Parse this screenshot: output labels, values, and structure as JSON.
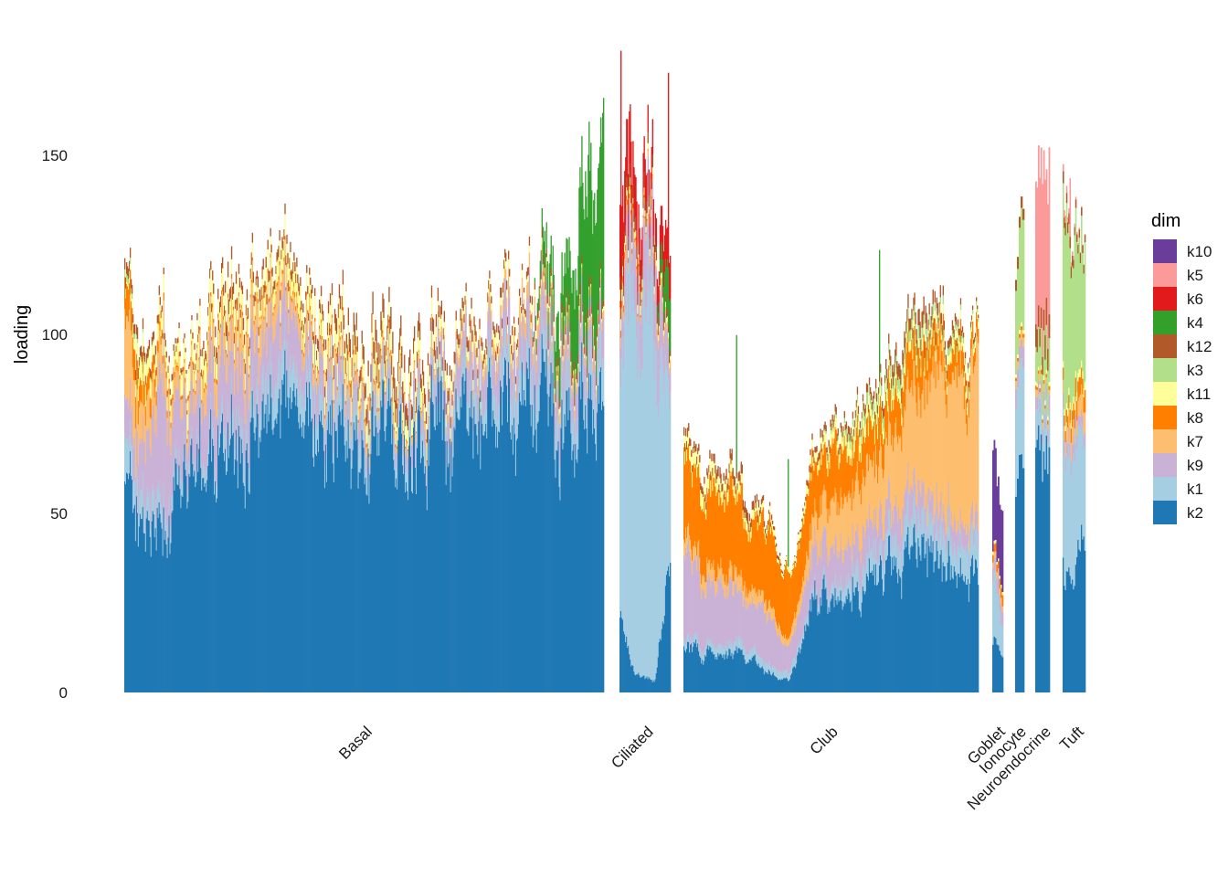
{
  "chart_data": {
    "type": "bar",
    "stacked": true,
    "ylabel": "loading",
    "ylim": [
      0,
      185
    ],
    "yticks": [
      0,
      50,
      100,
      150
    ],
    "grid": false,
    "legend": {
      "title": "dim",
      "placement": "right",
      "entries": [
        "k10",
        "k5",
        "k6",
        "k4",
        "k12",
        "k3",
        "k11",
        "k8",
        "k7",
        "k9",
        "k1",
        "k2"
      ]
    },
    "colors": {
      "k10": "#6a3d9a",
      "k5": "#fb9a99",
      "k6": "#e31a1c",
      "k4": "#33a02c",
      "k12": "#b15928",
      "k3": "#b2df8a",
      "k11": "#ffff99",
      "k8": "#ff7f00",
      "k7": "#fdbf6f",
      "k9": "#cab2d6",
      "k1": "#a6cee3",
      "k2": "#1f78b4"
    },
    "stack_order_bottom_to_top": [
      "k2",
      "k1",
      "k9",
      "k7",
      "k8",
      "k11",
      "k3",
      "k12",
      "k4",
      "k6",
      "k5",
      "k10"
    ],
    "groups": [
      {
        "label": "Basal",
        "bars": 530,
        "approx_profile": [
          {
            "at": 0.0,
            "k2": 58,
            "k1": 12,
            "k9": 10,
            "k7": 25,
            "k8": 8,
            "k11": 0,
            "k3": 2,
            "k12": 3,
            "k4": 0,
            "k6": 0
          },
          {
            "at": 0.03,
            "k2": 46,
            "k1": 8,
            "k9": 12,
            "k7": 10,
            "k8": 8,
            "k11": 5,
            "k3": 1,
            "k12": 3,
            "k4": 0,
            "k6": 0
          },
          {
            "at": 0.08,
            "k2": 48,
            "k1": 6,
            "k9": 30,
            "k7": 8,
            "k8": 2,
            "k11": 4,
            "k3": 0,
            "k12": 2,
            "k4": 0,
            "k6": 0
          },
          {
            "at": 0.13,
            "k2": 62,
            "k1": 3,
            "k9": 15,
            "k7": 4,
            "k8": 1,
            "k11": 8,
            "k3": 0,
            "k12": 1,
            "k4": 0,
            "k6": 0
          },
          {
            "at": 0.22,
            "k2": 70,
            "k1": 6,
            "k9": 20,
            "k7": 10,
            "k8": 1,
            "k11": 4,
            "k3": 0,
            "k12": 4,
            "k4": 0,
            "k6": 0
          },
          {
            "at": 0.38,
            "k2": 72,
            "k1": 10,
            "k9": 12,
            "k7": 5,
            "k8": 1,
            "k11": 6,
            "k3": 0,
            "k12": 2,
            "k4": 0,
            "k6": 0
          },
          {
            "at": 0.54,
            "k2": 70,
            "k1": 6,
            "k9": 4,
            "k7": 2,
            "k8": 1,
            "k11": 6,
            "k3": 0,
            "k12": 6,
            "k4": 0,
            "k6": 0
          },
          {
            "at": 0.68,
            "k2": 75,
            "k1": 6,
            "k9": 8,
            "k7": 2,
            "k8": 0,
            "k11": 3,
            "k3": 0,
            "k12": 3,
            "k4": 0,
            "k6": 0
          },
          {
            "at": 0.85,
            "k2": 82,
            "k1": 10,
            "k9": 12,
            "k7": 4,
            "k8": 0,
            "k11": 2,
            "k3": 0,
            "k12": 2,
            "k4": 0,
            "k6": 0
          },
          {
            "at": 0.96,
            "k2": 82,
            "k1": 7,
            "k9": 10,
            "k7": 2,
            "k8": 0,
            "k11": 1,
            "k3": 0,
            "k12": 3,
            "k4": 30,
            "k6": 0
          },
          {
            "at": 1.0,
            "k2": 68,
            "k1": 12,
            "k9": 12,
            "k7": 2,
            "k8": 0,
            "k11": 1,
            "k3": 0,
            "k12": 2,
            "k4": 48,
            "k6": 0
          }
        ]
      },
      {
        "label": "Ciliated",
        "bars": 55,
        "approx_profile": [
          {
            "at": 0.0,
            "k2": 20,
            "k1": 80,
            "k9": 12,
            "k7": 3,
            "k8": 2,
            "k11": 3,
            "k3": 0,
            "k12": 3,
            "k4": 0,
            "k6": 20
          },
          {
            "at": 0.3,
            "k2": 5,
            "k1": 100,
            "k9": 15,
            "k7": 2,
            "k8": 1,
            "k11": 2,
            "k3": 0,
            "k12": 4,
            "k4": 0,
            "k6": 10
          },
          {
            "at": 0.7,
            "k2": 3,
            "k1": 100,
            "k9": 22,
            "k7": 2,
            "k8": 0,
            "k11": 2,
            "k3": 0,
            "k12": 3,
            "k4": 0,
            "k6": 8
          },
          {
            "at": 1.0,
            "k2": 40,
            "k1": 50,
            "k9": 8,
            "k7": 2,
            "k8": 0,
            "k11": 1,
            "k3": 0,
            "k12": 2,
            "k4": 15,
            "k6": 12
          }
        ]
      },
      {
        "label": "Club",
        "bars": 320,
        "approx_profile": [
          {
            "at": 0.0,
            "k2": 12,
            "k1": 2,
            "k9": 22,
            "k7": 5,
            "k8": 22,
            "k11": 4,
            "k3": 0,
            "k12": 2,
            "k4": 0,
            "k6": 0
          },
          {
            "at": 0.2,
            "k2": 10,
            "k1": 3,
            "k9": 15,
            "k7": 4,
            "k8": 20,
            "k11": 3,
            "k3": 0,
            "k12": 3,
            "k4": 0,
            "k6": 0
          },
          {
            "at": 0.36,
            "k2": 3,
            "k1": 2,
            "k9": 8,
            "k7": 2,
            "k8": 18,
            "k11": 1,
            "k3": 0,
            "k12": 0,
            "k4": 0,
            "k6": 0
          },
          {
            "at": 0.45,
            "k2": 28,
            "k1": 2,
            "k9": 12,
            "k7": 10,
            "k8": 15,
            "k11": 3,
            "k3": 0,
            "k12": 2,
            "k4": 0,
            "k6": 0
          },
          {
            "at": 0.62,
            "k2": 30,
            "k1": 6,
            "k9": 10,
            "k7": 15,
            "k8": 12,
            "k11": 4,
            "k3": 3,
            "k12": 2,
            "k4": 0,
            "k6": 0
          },
          {
            "at": 0.8,
            "k2": 40,
            "k1": 8,
            "k9": 8,
            "k7": 30,
            "k8": 10,
            "k11": 3,
            "k3": 3,
            "k12": 4,
            "k4": 0,
            "k6": 0
          },
          {
            "at": 1.0,
            "k2": 30,
            "k1": 8,
            "k9": 5,
            "k7": 45,
            "k8": 4,
            "k11": 2,
            "k3": 1,
            "k12": 1,
            "k4": 0,
            "k6": 0
          }
        ]
      },
      {
        "label": "Goblet",
        "bars": 8,
        "approx_profile": [
          {
            "at": 0.0,
            "k2": 15,
            "k1": 20,
            "k9": 4,
            "k7": 2,
            "k8": 2,
            "k11": 1,
            "k3": 0,
            "k12": 0,
            "k4": 0,
            "k6": 0,
            "k10": 25
          },
          {
            "at": 1.0,
            "k2": 8,
            "k1": 8,
            "k9": 4,
            "k7": 2,
            "k8": 3,
            "k11": 1,
            "k3": 0,
            "k12": 0,
            "k4": 0,
            "k6": 0,
            "k10": 20
          }
        ]
      },
      {
        "label": "Ionocyte",
        "bars": 5,
        "approx_profile": [
          {
            "at": 0.0,
            "k2": 60,
            "k1": 25,
            "k9": 5,
            "k7": 2,
            "k8": 1,
            "k11": 1,
            "k3": 30,
            "k12": 3,
            "k4": 0,
            "k6": 0
          }
        ]
      },
      {
        "label": "Neuroendocrine",
        "bars": 11,
        "approx_profile": [
          {
            "at": 0.0,
            "k2": 78,
            "k1": 12,
            "k9": 4,
            "k7": 2,
            "k8": 1,
            "k11": 1,
            "k3": 10,
            "k12": 6,
            "k4": 0,
            "k6": 0,
            "k5": 45
          }
        ]
      },
      {
        "label": "Tuft",
        "bars": 20,
        "approx_profile": [
          {
            "at": 0.0,
            "k2": 35,
            "k1": 40,
            "k9": 4,
            "k7": 4,
            "k8": 4,
            "k11": 2,
            "k3": 45,
            "k12": 3,
            "k4": 0,
            "k6": 0,
            "k5": 2
          },
          {
            "at": 1.0,
            "k2": 38,
            "k1": 25,
            "k9": 4,
            "k7": 8,
            "k8": 6,
            "k11": 2,
            "k3": 45,
            "k12": 2,
            "k4": 0,
            "k6": 0,
            "k5": 0
          }
        ]
      }
    ],
    "highlights": [
      {
        "group": "Ciliated",
        "bar": 1,
        "k6": 50
      },
      {
        "group": "Ciliated",
        "bar": 52,
        "k6": 45
      },
      {
        "group": "Club",
        "bar": 57,
        "k4": 38
      },
      {
        "group": "Club",
        "bar": 113,
        "k4": 30
      },
      {
        "group": "Club",
        "bar": 212,
        "k4": 35
      },
      {
        "group": "Tuft",
        "bar": 6,
        "k5": 15
      }
    ]
  }
}
